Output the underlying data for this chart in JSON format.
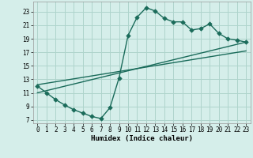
{
  "xlabel": "Humidex (Indice chaleur)",
  "background_color": "#d5eeea",
  "grid_color": "#aed4cc",
  "line_color": "#1a6b5a",
  "xlim": [
    -0.5,
    23.5
  ],
  "ylim": [
    6.5,
    24.5
  ],
  "xticks": [
    0,
    1,
    2,
    3,
    4,
    5,
    6,
    7,
    8,
    9,
    10,
    11,
    12,
    13,
    14,
    15,
    16,
    17,
    18,
    19,
    20,
    21,
    22,
    23
  ],
  "yticks": [
    7,
    9,
    11,
    13,
    15,
    17,
    19,
    21,
    23
  ],
  "line1_x": [
    0,
    1,
    2,
    3,
    4,
    5,
    6,
    7,
    8,
    9,
    10,
    11,
    12,
    13,
    14,
    15,
    16,
    17,
    18,
    19,
    20,
    21,
    22,
    23
  ],
  "line1_y": [
    12,
    11,
    10,
    9.2,
    8.5,
    8.0,
    7.5,
    7.2,
    8.8,
    13.2,
    19.5,
    22.2,
    23.6,
    23.1,
    22.0,
    21.5,
    21.5,
    20.3,
    20.5,
    21.2,
    19.8,
    19.0,
    18.8,
    18.5
  ],
  "line2_x": [
    0,
    23
  ],
  "line2_y": [
    11.0,
    18.5
  ],
  "line3_x": [
    0,
    23
  ],
  "line3_y": [
    12.2,
    17.2
  ],
  "markersize": 2.8,
  "linewidth": 1.0,
  "tick_fontsize": 5.5,
  "xlabel_fontsize": 6.5
}
